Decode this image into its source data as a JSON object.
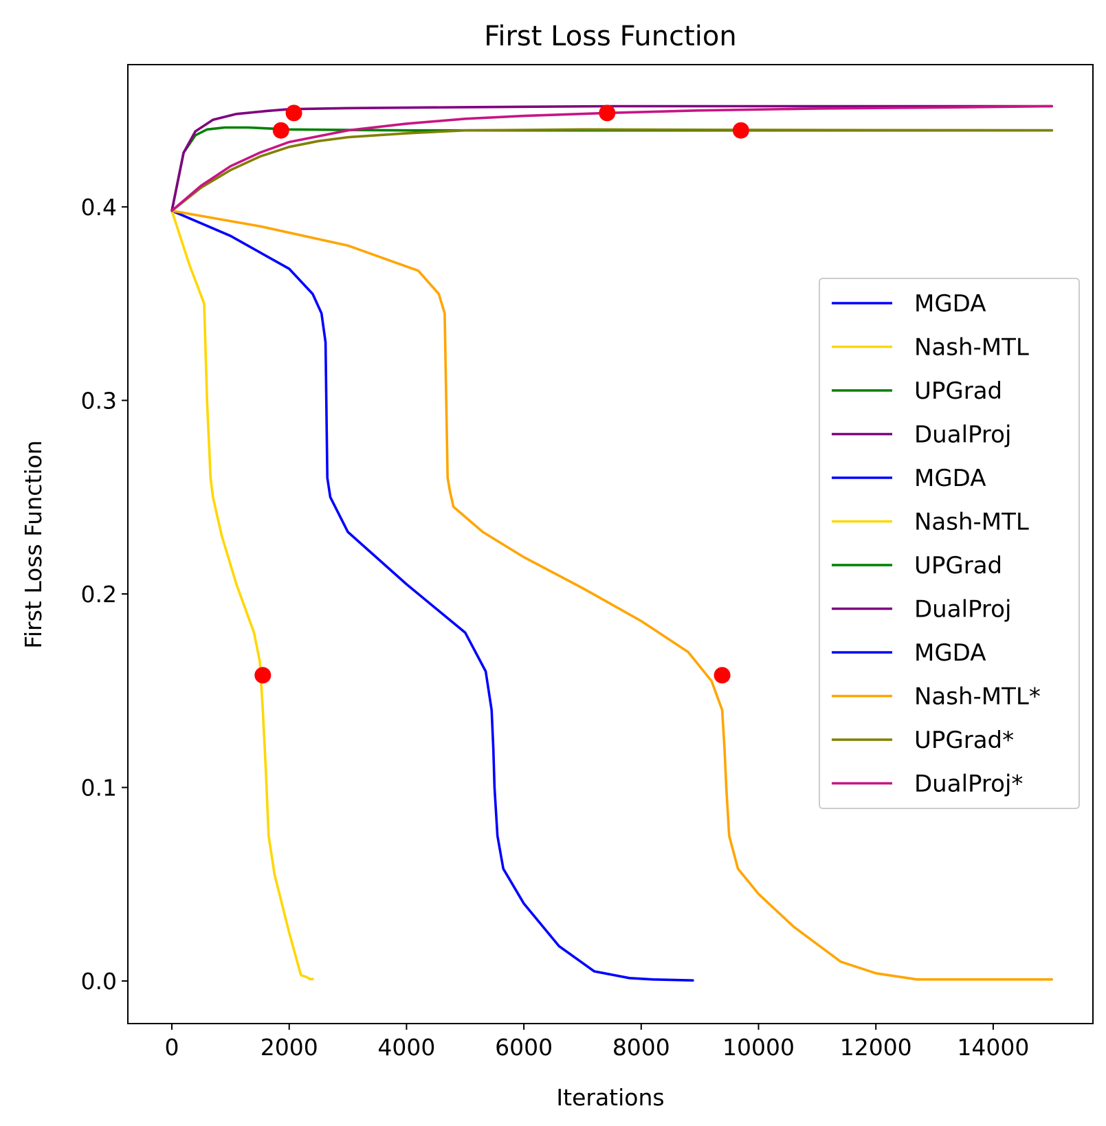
{
  "chart_data": {
    "type": "line",
    "title": "First Loss Function",
    "xlabel": "Iterations",
    "ylabel": "First Loss Function",
    "xlim": [
      -750,
      15700
    ],
    "ylim": [
      -0.022,
      0.4735
    ],
    "xticks": [
      0,
      2000,
      4000,
      6000,
      8000,
      10000,
      12000,
      14000
    ],
    "xtick_labels": [
      "0",
      "2000",
      "4000",
      "6000",
      "8000",
      "10000",
      "12000",
      "14000"
    ],
    "yticks": [
      0.0,
      0.1,
      0.2,
      0.3,
      0.4
    ],
    "ytick_labels": [
      "0.0",
      "0.1",
      "0.2",
      "0.3",
      "0.4"
    ],
    "grid": false,
    "legend_position": "right",
    "series": [
      {
        "name": "MGDA",
        "color": "#0000ff",
        "x": [
          0,
          1000,
          2000,
          2400,
          2550,
          2620,
          2650,
          2700,
          3000,
          4000,
          5000,
          5350,
          5450,
          5480,
          5500,
          5550,
          5650,
          6000,
          6600,
          7200,
          7800,
          8200,
          8880
        ],
        "y": [
          0.398,
          0.385,
          0.368,
          0.355,
          0.345,
          0.33,
          0.26,
          0.25,
          0.232,
          0.205,
          0.18,
          0.16,
          0.14,
          0.12,
          0.1,
          0.075,
          0.058,
          0.04,
          0.018,
          0.005,
          0.0015,
          0.0008,
          0.0003
        ]
      },
      {
        "name": "Nash-MTL",
        "color": "#ffd700",
        "x": [
          0,
          300,
          550,
          600,
          660,
          700,
          850,
          1100,
          1400,
          1500,
          1550,
          1600,
          1650,
          1750,
          2000,
          2200,
          2300,
          2350,
          2400
        ],
        "y": [
          0.398,
          0.37,
          0.35,
          0.3,
          0.26,
          0.25,
          0.23,
          0.205,
          0.18,
          0.165,
          0.14,
          0.11,
          0.075,
          0.055,
          0.025,
          0.003,
          0.002,
          0.001,
          0.001
        ]
      },
      {
        "name": "UPGrad",
        "color": "#008000",
        "x": [
          0,
          200,
          400,
          600,
          900,
          1300,
          2000,
          4000,
          8000,
          15000
        ],
        "y": [
          0.398,
          0.428,
          0.437,
          0.44,
          0.441,
          0.441,
          0.44,
          0.4395,
          0.4395,
          0.4395
        ]
      },
      {
        "name": "DualProj",
        "color": "#800080",
        "x": [
          0,
          200,
          400,
          700,
          1100,
          1600,
          2000,
          3000,
          5000,
          7500,
          10000,
          15000
        ],
        "y": [
          0.398,
          0.428,
          0.439,
          0.445,
          0.448,
          0.4495,
          0.4505,
          0.451,
          0.4515,
          0.452,
          0.452,
          0.452
        ]
      },
      {
        "name": "MGDA",
        "color": "#0000ff",
        "x": [
          0
        ],
        "y": [
          0.398
        ]
      },
      {
        "name": "Nash-MTL",
        "color": "#ffd700",
        "x": [
          0
        ],
        "y": [
          0.398
        ]
      },
      {
        "name": "UPGrad",
        "color": "#008000",
        "x": [
          0
        ],
        "y": [
          0.398
        ]
      },
      {
        "name": "DualProj",
        "color": "#800080",
        "x": [
          0
        ],
        "y": [
          0.398
        ]
      },
      {
        "name": "MGDA",
        "color": "#0000ff",
        "x": [
          0
        ],
        "y": [
          0.398
        ]
      },
      {
        "name": "Nash-MTL*",
        "color": "#ffa500",
        "x": [
          0,
          1500,
          3000,
          4200,
          4550,
          4650,
          4700,
          4740,
          4800,
          5300,
          6000,
          7000,
          8000,
          8800,
          9200,
          9380,
          9420,
          9450,
          9500,
          9650,
          10000,
          10600,
          11400,
          12000,
          12700,
          15000
        ],
        "y": [
          0.398,
          0.39,
          0.38,
          0.367,
          0.355,
          0.345,
          0.26,
          0.253,
          0.245,
          0.232,
          0.219,
          0.203,
          0.186,
          0.17,
          0.155,
          0.14,
          0.12,
          0.1,
          0.075,
          0.058,
          0.045,
          0.028,
          0.01,
          0.004,
          0.0008,
          0.0008
        ]
      },
      {
        "name": "UPGrad*",
        "color": "#808000",
        "x": [
          0,
          500,
          1000,
          1500,
          2000,
          2500,
          3000,
          4000,
          5000,
          7000,
          9700,
          15000
        ],
        "y": [
          0.398,
          0.41,
          0.419,
          0.426,
          0.431,
          0.434,
          0.436,
          0.438,
          0.4395,
          0.44,
          0.4398,
          0.4395
        ]
      },
      {
        "name": "DualProj*",
        "color": "#c71585",
        "x": [
          0,
          500,
          1000,
          1500,
          2000,
          3000,
          4000,
          5000,
          6000,
          7400,
          9000,
          11000,
          13000,
          15000
        ],
        "y": [
          0.398,
          0.411,
          0.421,
          0.428,
          0.4335,
          0.4395,
          0.443,
          0.4455,
          0.447,
          0.4485,
          0.4498,
          0.4508,
          0.4513,
          0.452
        ]
      }
    ],
    "markers": {
      "color": "#ff0000",
      "points": [
        {
          "x": 2080,
          "y": 0.4485
        },
        {
          "x": 1860,
          "y": 0.4395
        },
        {
          "x": 7420,
          "y": 0.4485
        },
        {
          "x": 9700,
          "y": 0.4395
        },
        {
          "x": 1550,
          "y": 0.158
        },
        {
          "x": 9380,
          "y": 0.158
        }
      ]
    }
  }
}
